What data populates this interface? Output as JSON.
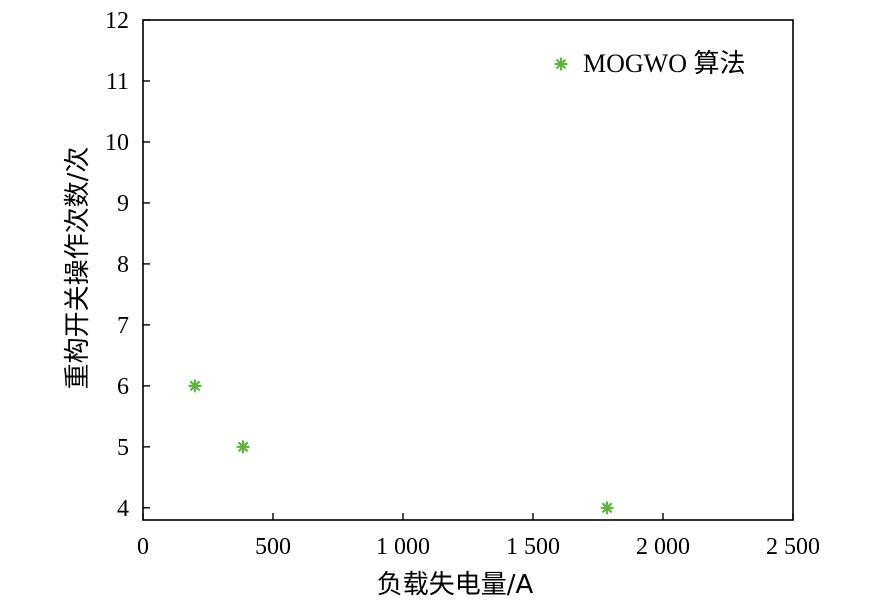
{
  "chart_data": {
    "type": "scatter",
    "xlabel": "负载失电量/A",
    "ylabel": "重构开关操作次数/次",
    "xlim": [
      0,
      2500
    ],
    "ylim": [
      3.8,
      12
    ],
    "x_ticks": [
      0,
      500,
      1000,
      1500,
      2000,
      2500
    ],
    "x_tick_labels": [
      "0",
      "500",
      "1 000",
      "1 500",
      "2 000",
      "2 500"
    ],
    "y_ticks": [
      4,
      5,
      6,
      7,
      8,
      9,
      10,
      11,
      12
    ],
    "y_tick_labels": [
      "4",
      "5",
      "6",
      "7",
      "8",
      "9",
      "10",
      "11",
      "12"
    ],
    "grid": false,
    "legend_position": "top-right",
    "series": [
      {
        "name": "MOGWO 算法",
        "marker": "asterisk",
        "color": "#5cb43c",
        "points": [
          {
            "x": 200,
            "y": 6
          },
          {
            "x": 385,
            "y": 5
          },
          {
            "x": 1785,
            "y": 4
          }
        ]
      }
    ]
  }
}
